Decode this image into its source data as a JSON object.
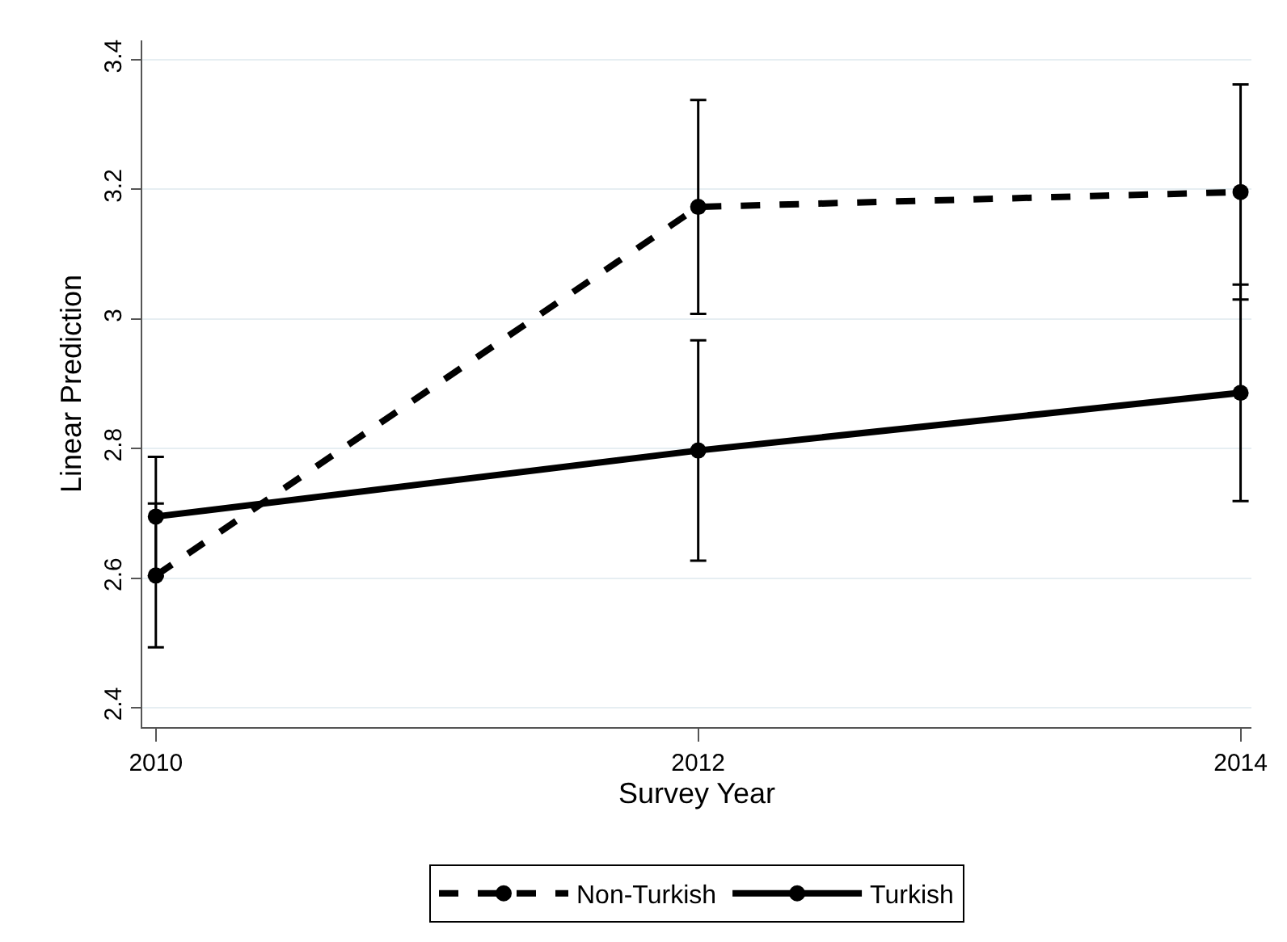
{
  "chart_data": {
    "type": "line",
    "xlabel": "Survey Year",
    "ylabel": "Linear Prediction",
    "x": [
      2010,
      2012,
      2014
    ],
    "series": [
      {
        "name": "Non-Turkish",
        "color": "#000000",
        "line_style": "dashed",
        "values": [
          2.604,
          3.173,
          3.196
        ],
        "errors": [
          0.111,
          0.165,
          0.166
        ]
      },
      {
        "name": "Turkish",
        "color": "#000000",
        "line_style": "solid",
        "values": [
          2.695,
          2.797,
          2.886
        ],
        "errors": [
          0.092,
          0.17,
          0.167
        ]
      }
    ],
    "xlim": [
      2009.95,
      2014.04
    ],
    "xticks": [
      2010,
      2012,
      2014
    ],
    "ylim": [
      2.37,
      3.43
    ],
    "yticks": [
      2.4,
      2.6,
      2.8,
      3,
      3.2,
      3.4
    ],
    "grid": "y",
    "legend": "bottom",
    "marker": "circle"
  }
}
